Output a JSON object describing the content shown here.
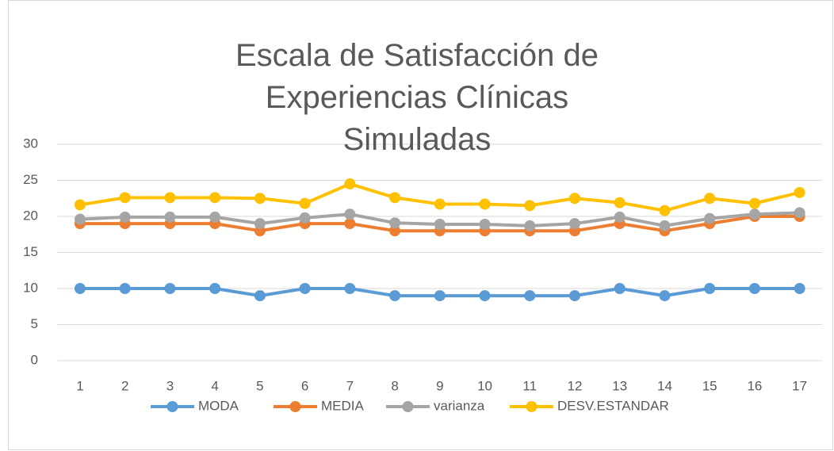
{
  "chart_data": {
    "type": "line",
    "title": "Escala de Satisfacción de Experiencias Clínicas Simuladas",
    "categories": [
      "1",
      "2",
      "3",
      "4",
      "5",
      "6",
      "7",
      "8",
      "9",
      "10",
      "11",
      "12",
      "13",
      "14",
      "15",
      "16",
      "17"
    ],
    "series": [
      {
        "name": "MODA",
        "color": "#5b9bd5",
        "values": [
          10,
          10,
          10,
          10,
          9,
          10,
          10,
          9,
          9,
          9,
          9,
          9,
          10,
          9,
          10,
          10,
          10
        ]
      },
      {
        "name": "MEDIA",
        "color": "#ed7d31",
        "values": [
          19,
          19,
          19,
          19,
          18,
          19,
          19,
          18,
          18,
          18,
          18,
          18,
          19,
          18,
          19,
          20,
          20
        ]
      },
      {
        "name": "varianza",
        "color": "#a5a5a5",
        "values": [
          19.6,
          19.9,
          19.9,
          19.9,
          19.0,
          19.8,
          20.3,
          19.1,
          18.9,
          18.9,
          18.7,
          19.0,
          19.9,
          18.7,
          19.7,
          20.3,
          20.5
        ]
      },
      {
        "name": "DESV.ESTANDAR",
        "color": "#ffc000",
        "values": [
          21.6,
          22.6,
          22.6,
          22.6,
          22.5,
          21.8,
          24.5,
          22.6,
          21.7,
          21.7,
          21.5,
          22.5,
          21.9,
          20.8,
          22.5,
          21.8,
          23.3
        ]
      }
    ],
    "ylim": [
      0,
      30
    ],
    "yticks": [
      0,
      5,
      10,
      15,
      20,
      25,
      30
    ],
    "grid": true,
    "legend": "bottom"
  }
}
